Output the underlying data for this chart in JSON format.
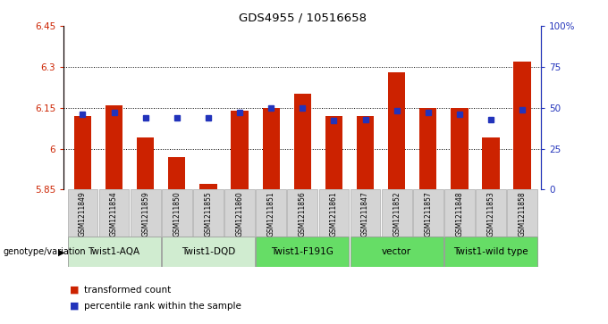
{
  "title": "GDS4955 / 10516658",
  "samples": [
    "GSM1211849",
    "GSM1211854",
    "GSM1211859",
    "GSM1211850",
    "GSM1211855",
    "GSM1211860",
    "GSM1211851",
    "GSM1211856",
    "GSM1211861",
    "GSM1211847",
    "GSM1211852",
    "GSM1211857",
    "GSM1211848",
    "GSM1211853",
    "GSM1211858"
  ],
  "bar_values": [
    6.12,
    6.16,
    6.04,
    5.97,
    5.87,
    6.14,
    6.15,
    6.2,
    6.12,
    6.12,
    6.28,
    6.15,
    6.15,
    6.04,
    6.32
  ],
  "percentile_values": [
    46,
    47,
    44,
    44,
    44,
    47,
    50,
    50,
    42,
    43,
    48,
    47,
    46,
    43,
    49
  ],
  "ylim_left": [
    5.85,
    6.45
  ],
  "ylim_right": [
    0,
    100
  ],
  "yticks_left": [
    5.85,
    6.0,
    6.15,
    6.3,
    6.45
  ],
  "ytick_labels_left": [
    "5.85",
    "6",
    "6.15",
    "6.3",
    "6.45"
  ],
  "yticks_right": [
    0,
    25,
    50,
    75,
    100
  ],
  "ytick_labels_right": [
    "0",
    "25",
    "50",
    "75",
    "100%"
  ],
  "grid_values": [
    6.0,
    6.15,
    6.3
  ],
  "bar_color": "#CC2200",
  "percentile_color": "#2233BB",
  "bar_bottom": 5.85,
  "groups": [
    {
      "label": "Twist1-AQA",
      "start": 0,
      "end": 2,
      "color": "#d0ecd0"
    },
    {
      "label": "Twist1-DQD",
      "start": 3,
      "end": 5,
      "color": "#d0ecd0"
    },
    {
      "label": "Twist1-F191G",
      "start": 6,
      "end": 8,
      "color": "#66dd66"
    },
    {
      "label": "vector",
      "start": 9,
      "end": 11,
      "color": "#66dd66"
    },
    {
      "label": "Twist1-wild type",
      "start": 12,
      "end": 14,
      "color": "#66dd66"
    }
  ],
  "xlabel_left": "genotype/variation",
  "legend_items": [
    {
      "label": "transformed count",
      "color": "#CC2200"
    },
    {
      "label": "percentile rank within the sample",
      "color": "#2233BB"
    }
  ],
  "axis_color_left": "#CC2200",
  "axis_color_right": "#2233BB",
  "sample_box_color": "#d4d4d4",
  "sample_box_edge": "#aaaaaa"
}
